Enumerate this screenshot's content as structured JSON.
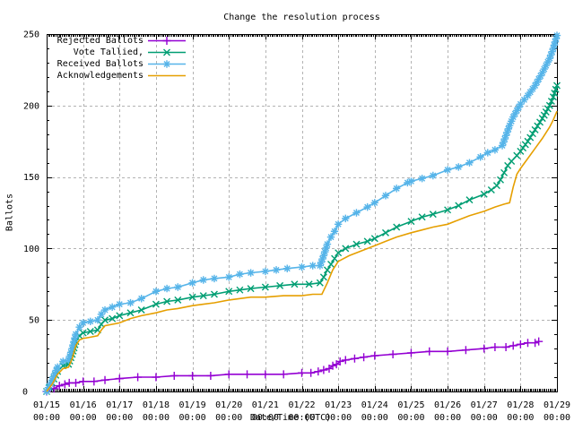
{
  "title": "Change the resolution process",
  "colors": {
    "background": "#ffffff",
    "border": "#000000",
    "grid": "#b3b3b3",
    "text": "#000000"
  },
  "legend": {
    "position": "top-left"
  },
  "chart_data": {
    "type": "line",
    "title": "Change the resolution process",
    "xlabel": "Date/Time (UTC)",
    "ylabel": "Ballots",
    "ylim": [
      0,
      250
    ],
    "xlim_days": [
      0,
      14
    ],
    "grid": true,
    "y_ticks": [
      0,
      50,
      100,
      150,
      200,
      250
    ],
    "x_ticks": [
      {
        "date": "01/15",
        "time": "00:00"
      },
      {
        "date": "01/16",
        "time": "00:00"
      },
      {
        "date": "01/17",
        "time": "00:00"
      },
      {
        "date": "01/18",
        "time": "00:00"
      },
      {
        "date": "01/19",
        "time": "00:00"
      },
      {
        "date": "01/20",
        "time": "00:00"
      },
      {
        "date": "01/21",
        "time": "00:00"
      },
      {
        "date": "01/22",
        "time": "00:00"
      },
      {
        "date": "01/23",
        "time": "00:00"
      },
      {
        "date": "01/24",
        "time": "00:00"
      },
      {
        "date": "01/25",
        "time": "00:00"
      },
      {
        "date": "01/26",
        "time": "00:00"
      },
      {
        "date": "01/27",
        "time": "00:00"
      },
      {
        "date": "01/28",
        "time": "00:00"
      },
      {
        "date": "01/29",
        "time": "00:00"
      }
    ],
    "x_unit": "days since 01/15 00:00 UTC",
    "series": [
      {
        "name": "Rejected Ballots",
        "color": "#9400d3",
        "marker": "plus",
        "points": [
          [
            0,
            0
          ],
          [
            0.2,
            2
          ],
          [
            0.35,
            4
          ],
          [
            0.5,
            5
          ],
          [
            0.62,
            6
          ],
          [
            0.8,
            6
          ],
          [
            1.0,
            7
          ],
          [
            1.3,
            7
          ],
          [
            1.6,
            8
          ],
          [
            2.0,
            9
          ],
          [
            2.5,
            10
          ],
          [
            3.0,
            10
          ],
          [
            3.5,
            11
          ],
          [
            4.0,
            11
          ],
          [
            4.5,
            11
          ],
          [
            5.0,
            12
          ],
          [
            5.5,
            12
          ],
          [
            6.0,
            12
          ],
          [
            6.5,
            12
          ],
          [
            7.0,
            13
          ],
          [
            7.25,
            13
          ],
          [
            7.45,
            14
          ],
          [
            7.6,
            15
          ],
          [
            7.75,
            16
          ],
          [
            7.85,
            18
          ],
          [
            7.95,
            19
          ],
          [
            8.05,
            21
          ],
          [
            8.2,
            22
          ],
          [
            8.45,
            23
          ],
          [
            8.7,
            24
          ],
          [
            9.0,
            25
          ],
          [
            9.5,
            26
          ],
          [
            10.0,
            27
          ],
          [
            10.5,
            28
          ],
          [
            11.0,
            28
          ],
          [
            11.5,
            29
          ],
          [
            12.0,
            30
          ],
          [
            12.3,
            31
          ],
          [
            12.6,
            31
          ],
          [
            12.8,
            32
          ],
          [
            13.0,
            33
          ],
          [
            13.2,
            34
          ],
          [
            13.4,
            34
          ],
          [
            13.5,
            35
          ]
        ]
      },
      {
        "name": "Vote Tallied,",
        "color": "#009e73",
        "marker": "cross",
        "points": [
          [
            0,
            0
          ],
          [
            0.15,
            6
          ],
          [
            0.3,
            14
          ],
          [
            0.45,
            18
          ],
          [
            0.6,
            19
          ],
          [
            0.7,
            26
          ],
          [
            0.8,
            35
          ],
          [
            0.9,
            39
          ],
          [
            1.0,
            41
          ],
          [
            1.2,
            42
          ],
          [
            1.4,
            43
          ],
          [
            1.5,
            47
          ],
          [
            1.6,
            50
          ],
          [
            1.8,
            51
          ],
          [
            2.0,
            53
          ],
          [
            2.3,
            55
          ],
          [
            2.6,
            57
          ],
          [
            3.0,
            61
          ],
          [
            3.3,
            63
          ],
          [
            3.6,
            64
          ],
          [
            4.0,
            66
          ],
          [
            4.3,
            67
          ],
          [
            4.6,
            68
          ],
          [
            5.0,
            70
          ],
          [
            5.3,
            71
          ],
          [
            5.6,
            72
          ],
          [
            6.0,
            73
          ],
          [
            6.4,
            74
          ],
          [
            6.8,
            75
          ],
          [
            7.2,
            75
          ],
          [
            7.5,
            76
          ],
          [
            7.6,
            80
          ],
          [
            7.7,
            85
          ],
          [
            7.8,
            89
          ],
          [
            7.9,
            93
          ],
          [
            8.0,
            97
          ],
          [
            8.2,
            100
          ],
          [
            8.5,
            103
          ],
          [
            8.8,
            105
          ],
          [
            9.0,
            107
          ],
          [
            9.3,
            111
          ],
          [
            9.6,
            115
          ],
          [
            10.0,
            119
          ],
          [
            10.3,
            122
          ],
          [
            10.6,
            124
          ],
          [
            11.0,
            127
          ],
          [
            11.3,
            130
          ],
          [
            11.6,
            134
          ],
          [
            12.0,
            138
          ],
          [
            12.2,
            141
          ],
          [
            12.35,
            144
          ],
          [
            12.45,
            148
          ],
          [
            12.55,
            153
          ],
          [
            12.65,
            158
          ],
          [
            12.75,
            161
          ],
          [
            12.9,
            165
          ],
          [
            13.0,
            168
          ],
          [
            13.2,
            175
          ],
          [
            13.4,
            183
          ],
          [
            13.6,
            191
          ],
          [
            13.8,
            200
          ],
          [
            13.9,
            206
          ],
          [
            14.0,
            214
          ]
        ]
      },
      {
        "name": "Received Ballots",
        "color": "#56b4e9",
        "marker": "asterisk",
        "points": [
          [
            0,
            0
          ],
          [
            0.15,
            8
          ],
          [
            0.3,
            17
          ],
          [
            0.45,
            21
          ],
          [
            0.6,
            22
          ],
          [
            0.7,
            30
          ],
          [
            0.8,
            40
          ],
          [
            0.9,
            45
          ],
          [
            1.0,
            48
          ],
          [
            1.2,
            49
          ],
          [
            1.4,
            50
          ],
          [
            1.5,
            54
          ],
          [
            1.6,
            57
          ],
          [
            1.8,
            59
          ],
          [
            2.0,
            61
          ],
          [
            2.3,
            62
          ],
          [
            2.6,
            65
          ],
          [
            3.0,
            70
          ],
          [
            3.3,
            72
          ],
          [
            3.6,
            73
          ],
          [
            4.0,
            76
          ],
          [
            4.3,
            78
          ],
          [
            4.6,
            79
          ],
          [
            5.0,
            80
          ],
          [
            5.3,
            82
          ],
          [
            5.6,
            83
          ],
          [
            6.0,
            84
          ],
          [
            6.3,
            85
          ],
          [
            6.6,
            86
          ],
          [
            7.0,
            87
          ],
          [
            7.3,
            88
          ],
          [
            7.5,
            88
          ],
          [
            7.6,
            95
          ],
          [
            7.7,
            103
          ],
          [
            7.8,
            108
          ],
          [
            7.9,
            112
          ],
          [
            8.0,
            117
          ],
          [
            8.2,
            121
          ],
          [
            8.5,
            125
          ],
          [
            8.8,
            129
          ],
          [
            9.0,
            132
          ],
          [
            9.3,
            137
          ],
          [
            9.6,
            142
          ],
          [
            9.9,
            146
          ],
          [
            10.0,
            147
          ],
          [
            10.3,
            149
          ],
          [
            10.6,
            151
          ],
          [
            11.0,
            155
          ],
          [
            11.3,
            157
          ],
          [
            11.6,
            160
          ],
          [
            11.9,
            164
          ],
          [
            12.1,
            167
          ],
          [
            12.3,
            169
          ],
          [
            12.5,
            172
          ],
          [
            12.6,
            179
          ],
          [
            12.7,
            186
          ],
          [
            12.8,
            192
          ],
          [
            13.0,
            201
          ],
          [
            13.2,
            207
          ],
          [
            13.4,
            214
          ],
          [
            13.6,
            223
          ],
          [
            13.8,
            233
          ],
          [
            13.9,
            240
          ],
          [
            14.0,
            249
          ]
        ]
      },
      {
        "name": "Acknowledgements",
        "color": "#e69f00",
        "marker": "none",
        "points": [
          [
            0,
            0
          ],
          [
            0.15,
            5
          ],
          [
            0.3,
            12
          ],
          [
            0.45,
            16
          ],
          [
            0.6,
            17
          ],
          [
            0.7,
            23
          ],
          [
            0.8,
            32
          ],
          [
            0.9,
            36
          ],
          [
            1.0,
            37
          ],
          [
            1.2,
            38
          ],
          [
            1.4,
            39
          ],
          [
            1.5,
            43
          ],
          [
            1.6,
            46
          ],
          [
            1.8,
            47
          ],
          [
            2.0,
            48
          ],
          [
            2.3,
            51
          ],
          [
            2.6,
            53
          ],
          [
            3.0,
            55
          ],
          [
            3.3,
            57
          ],
          [
            3.6,
            58
          ],
          [
            4.0,
            60
          ],
          [
            4.3,
            61
          ],
          [
            4.6,
            62
          ],
          [
            5.0,
            64
          ],
          [
            5.3,
            65
          ],
          [
            5.6,
            66
          ],
          [
            6.0,
            66
          ],
          [
            6.5,
            67
          ],
          [
            7.0,
            67
          ],
          [
            7.3,
            68
          ],
          [
            7.55,
            68
          ],
          [
            7.7,
            76
          ],
          [
            7.85,
            85
          ],
          [
            8.0,
            91
          ],
          [
            8.3,
            95
          ],
          [
            8.6,
            98
          ],
          [
            9.0,
            102
          ],
          [
            9.3,
            105
          ],
          [
            9.6,
            108
          ],
          [
            10.0,
            111
          ],
          [
            10.3,
            113
          ],
          [
            10.6,
            115
          ],
          [
            11.0,
            117
          ],
          [
            11.3,
            120
          ],
          [
            11.6,
            123
          ],
          [
            12.0,
            126
          ],
          [
            12.3,
            129
          ],
          [
            12.55,
            131
          ],
          [
            12.7,
            132
          ],
          [
            12.8,
            143
          ],
          [
            12.9,
            152
          ],
          [
            13.0,
            156
          ],
          [
            13.2,
            163
          ],
          [
            13.4,
            170
          ],
          [
            13.6,
            177
          ],
          [
            13.8,
            185
          ],
          [
            13.9,
            190
          ],
          [
            14.0,
            196
          ]
        ]
      }
    ]
  }
}
